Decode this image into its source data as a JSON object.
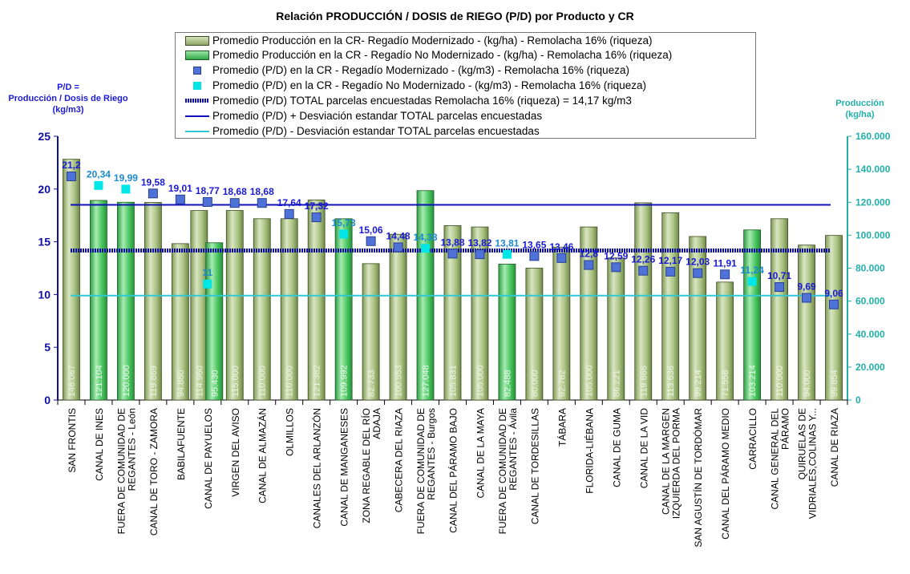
{
  "chart_data": {
    "type": "bar",
    "title": "Relación PRODUCCIÓN / DOSIS de RIEGO (P/D) por Producto y CR",
    "y_left_label": [
      "P/D =",
      "Producción  / Dosis  de Riego",
      "(kg/m3)"
    ],
    "y_right_label": [
      "Producción",
      "(kg/ha)"
    ],
    "ylim_left": [
      0,
      25
    ],
    "left_ticks": [
      "0",
      "5",
      "10",
      "15",
      "20",
      "25"
    ],
    "ylim_right": [
      0,
      160000
    ],
    "right_ticks": [
      "0",
      "20.000",
      "40.000",
      "60.000",
      "80.000",
      "100.000",
      "120.000",
      "140.000",
      "160.000"
    ],
    "legend": [
      "Promedio Producción en la CR- Regadío Modernizado -  (kg/ha) - Remolacha 16% (riqueza)",
      "Promedio Producción en la CR - Regadío No Modernizado -  (kg/ha) - Remolacha 16% (riqueza)",
      "Promedio (P/D) en la CR - Regadío Modernizado - (kg/m3) - Remolacha 16% (riqueza)",
      "Promedio (P/D) en la CR - Regadío No Modernizado - (kg/m3) - Remolacha 16% (riqueza)",
      "Promedio (P/D) TOTAL parcelas encuestadas Remolacha 16% (riqueza) = 14,17 kg/m3",
      "Promedio (P/D) + Desviación estandar TOTAL parcelas encuestadas",
      "Promedio (P/D) - Desviación estandar TOTAL parcelas encuestadas"
    ],
    "categories": [
      [
        "SAN FRONTIS"
      ],
      [
        "CANAL DE INES"
      ],
      [
        "FUERA DE COMUNIDAD DE",
        "REGANTES - León"
      ],
      [
        "CANAL DE TORO - ZAMORA"
      ],
      [
        "BABILAFUENTE"
      ],
      [
        "CANAL DE PAYUELOS"
      ],
      [
        "VIRGEN DEL AVISO"
      ],
      [
        "CANAL DE ALMAZÁN"
      ],
      [
        "OLMILLOS"
      ],
      [
        "CANALES DEL ARLANZÓN"
      ],
      [
        "CANAL DE MANGANESES"
      ],
      [
        "ZONA REGABLE DEL RÍO",
        "ADAJA"
      ],
      [
        "CABECERA DEL RIAZA"
      ],
      [
        "FUERA DE COMUNIDAD DE",
        "REGANTES - Burgos"
      ],
      [
        "CANAL DEL PÁRAMO BAJO"
      ],
      [
        "CANAL DE LA MAYA"
      ],
      [
        "FUERA DE COMUNIDAD DE",
        "REGANTES - Ávila"
      ],
      [
        "CANAL DE TORDESILLAS"
      ],
      [
        "TÁBARA"
      ],
      [
        "FLORIDA-LIÉBANA"
      ],
      [
        "CANAL DE GUMA"
      ],
      [
        "CANAL DE LA VID"
      ],
      [
        "CANAL DE LA MARGEN",
        "IZQUIERDA DEL PORMA"
      ],
      [
        "SAN AGUSTÍN DE TORDÓMAR"
      ],
      [
        "CANAL DEL PÁRAMO MEDIO"
      ],
      [
        "CARRACILLO"
      ],
      [
        "CANAL GENERAL DEL",
        "PÁRAMO"
      ],
      [
        "QUIRUELAS DE",
        "VIDRIALES,COLINAS Y..."
      ],
      [
        "CANAL DE RIAZA"
      ]
    ],
    "production_mod": [
      146067,
      null,
      null,
      119869,
      94880,
      114960,
      115000,
      110000,
      110000,
      121382,
      null,
      82733,
      100553,
      null,
      105831,
      105000,
      null,
      80000,
      92782,
      105000,
      86221,
      119666,
      113636,
      99214,
      71558,
      null,
      110000,
      94000,
      99854
    ],
    "production_mod_labels": [
      "146.067",
      "",
      "",
      "119.869",
      "94.880",
      "114.960",
      "115.000",
      "110.000",
      "110.000",
      "121.382",
      "",
      "82.733",
      "100.553",
      "",
      "105.831",
      "105.000",
      "",
      "80.000",
      "92.782",
      "105.000",
      "86.221",
      "119.666",
      "113.636",
      "99.214",
      "71.558",
      "",
      "110.000",
      "94.000",
      "99.854"
    ],
    "production_nomod": [
      null,
      121104,
      120000,
      null,
      null,
      95430,
      null,
      null,
      null,
      null,
      109992,
      null,
      null,
      127048,
      null,
      null,
      82488,
      null,
      null,
      null,
      null,
      null,
      null,
      null,
      null,
      103214,
      null,
      null,
      null
    ],
    "production_nomod_labels": [
      "",
      "121.104",
      "120.000",
      "",
      "",
      "95.430",
      "",
      "",
      "",
      "",
      "109.992",
      "",
      "",
      "127.048",
      "",
      "",
      "82.488",
      "",
      "",
      "",
      "",
      "",
      "",
      "",
      "",
      "103.214",
      "",
      "",
      ""
    ],
    "pd_mod": [
      21.2,
      null,
      null,
      19.58,
      19.01,
      18.77,
      18.68,
      18.68,
      17.64,
      17.32,
      null,
      15.06,
      14.48,
      null,
      13.88,
      13.82,
      null,
      13.65,
      13.46,
      12.8,
      12.59,
      12.26,
      12.17,
      12.03,
      11.91,
      null,
      10.71,
      9.69,
      9.06
    ],
    "pd_mod_labels": [
      "21,2",
      "",
      "",
      "19,58",
      "19,01",
      "18,77",
      "18,68",
      "18,68",
      "17,64",
      "17,32",
      "",
      "15,06",
      "14,48",
      "",
      "13,88",
      "13,82",
      "",
      "13,65",
      "13,46",
      "12,8",
      "12,59",
      "12,26",
      "12,17",
      "12,03",
      "11,91",
      "",
      "10,71",
      "9,69",
      "9,06"
    ],
    "pd_nomod": [
      null,
      20.34,
      19.99,
      null,
      null,
      11,
      null,
      null,
      null,
      null,
      15.73,
      null,
      null,
      14.38,
      null,
      null,
      13.81,
      null,
      null,
      null,
      null,
      null,
      null,
      null,
      null,
      11.24,
      null,
      null,
      null
    ],
    "pd_nomod_labels": [
      "",
      "20,34",
      "19,99",
      "",
      "",
      "11",
      "",
      "",
      "",
      "",
      "15,73",
      "",
      "",
      "14,38",
      "",
      "",
      "13,81",
      "",
      "",
      "",
      "",
      "",
      "",
      "",
      "",
      "11,24",
      "",
      "",
      ""
    ],
    "mean_pd": 14.17,
    "mean_plus_sd": 18.5,
    "mean_minus_sd": 9.9,
    "colors": {
      "bar_mod": "#a9c181",
      "bar_nomod": "#4cc561",
      "marker_mod": "#4f72d9",
      "marker_nomod": "#00e5e5",
      "label_mod": "#1a1ad6",
      "label_nomod": "#1b8ad0",
      "mean_line": "#1010a0",
      "plus_line": "#1010b8",
      "minus_line": "#2ec9d6",
      "left_axis": "#1010a0",
      "right_axis": "#20b0a8"
    }
  }
}
